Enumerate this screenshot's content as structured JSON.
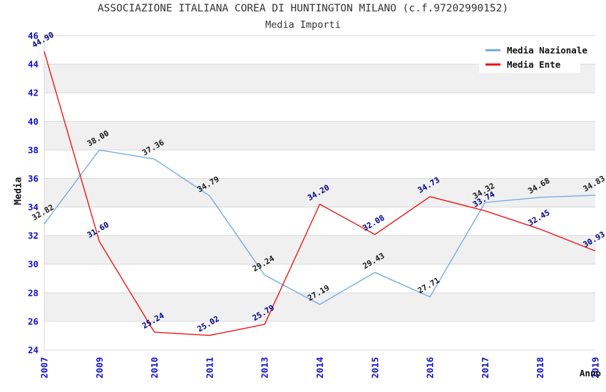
{
  "title": "ASSOCIAZIONE ITALIANA COREA DI HUNTINGTON MILANO (c.f.97202990152)",
  "subtitle": "Media Importi",
  "colors": {
    "background": "#ffffff",
    "title_text": "#333333",
    "axis_tick_text": "#1010cc",
    "axis_title_text": "#111111",
    "grid_line": "#d9d9d9",
    "band_fill": "#f0f0f0",
    "nazionale_line": "#76ade0",
    "ente_line": "#ee1515",
    "nazionale_label": "#1a1a1a",
    "ente_label": "#00008b"
  },
  "legend": {
    "entries": [
      {
        "label": "Media Nazionale",
        "color": "#76ade0"
      },
      {
        "label": "Media Ente",
        "color": "#ee1515"
      }
    ]
  },
  "chart_data": {
    "type": "line",
    "title": "ASSOCIAZIONE ITALIANA COREA DI HUNTINGTON MILANO (c.f.97202990152)",
    "subtitle": "Media Importi",
    "xlabel": "Anno",
    "ylabel": "Media",
    "categories": [
      "2007",
      "2009",
      "2010",
      "2011",
      "2013",
      "2014",
      "2015",
      "2016",
      "2017",
      "2018",
      "2019"
    ],
    "series": [
      {
        "name": "Media Nazionale",
        "color": "#76ade0",
        "label_color": "#1a1a1a",
        "values": [
          32.82,
          38.0,
          37.36,
          34.79,
          29.24,
          27.19,
          29.43,
          27.71,
          34.32,
          34.68,
          34.83
        ]
      },
      {
        "name": "Media Ente",
        "color": "#ee1515",
        "label_color": "#00008b",
        "values": [
          44.9,
          31.6,
          25.24,
          25.02,
          25.79,
          34.2,
          32.08,
          34.73,
          33.74,
          32.45,
          30.93
        ]
      }
    ],
    "ylim": [
      24,
      46
    ],
    "yticks": [
      24,
      26,
      28,
      30,
      32,
      34,
      36,
      38,
      40,
      42,
      44,
      46
    ],
    "grid": "horizontal",
    "banded_background": true,
    "legend_position": "top-right",
    "data_labels": "rotated -30deg, 2 decimals"
  }
}
